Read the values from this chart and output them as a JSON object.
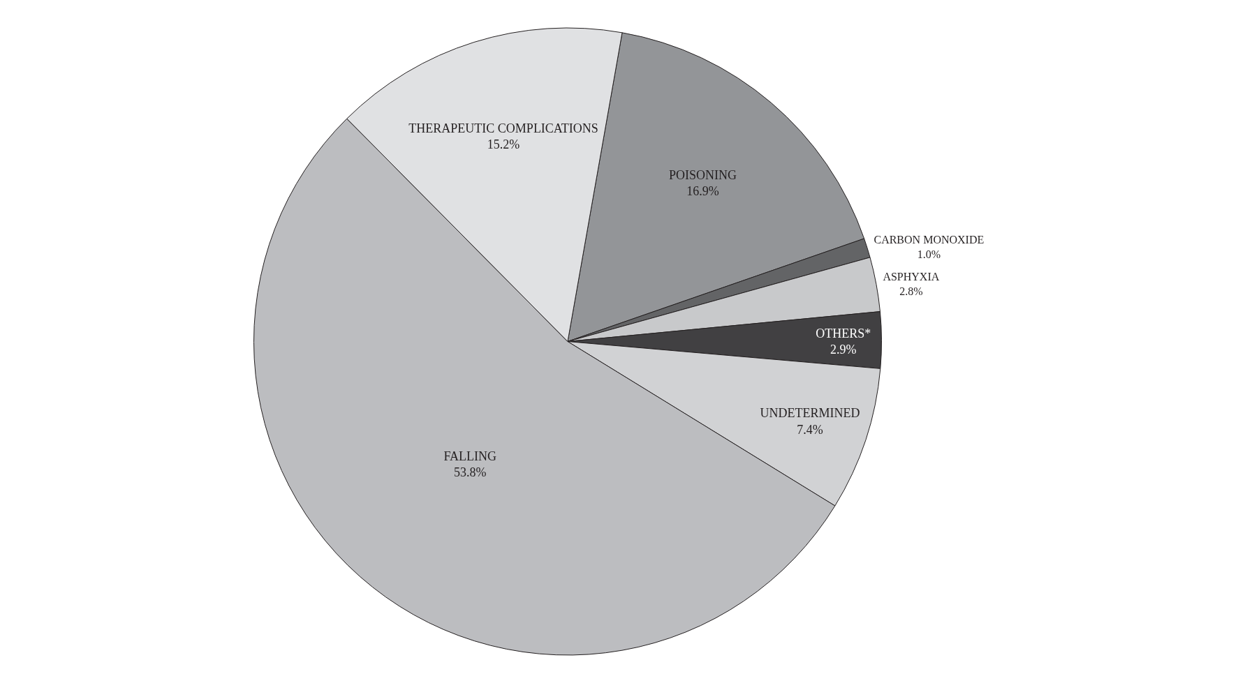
{
  "chart_data": {
    "type": "pie",
    "categories": [
      "POISONING",
      "CARBON MONOXIDE",
      "ASPHYXIA",
      "OTHERS*",
      "UNDETERMINED",
      "FALLING",
      "THERAPEUTIC COMPLICATIONS"
    ],
    "values": [
      16.9,
      1.0,
      2.8,
      2.9,
      7.4,
      53.8,
      15.2
    ],
    "value_labels": [
      "16.9%",
      "1.0%",
      "2.8%",
      "2.9%",
      "7.4%",
      "53.8%",
      "15.2%"
    ],
    "colors": [
      "#939598",
      "#636466",
      "#c8c9cb",
      "#414042",
      "#d1d2d4",
      "#bcbdc0",
      "#e0e1e3"
    ],
    "legend": false
  }
}
